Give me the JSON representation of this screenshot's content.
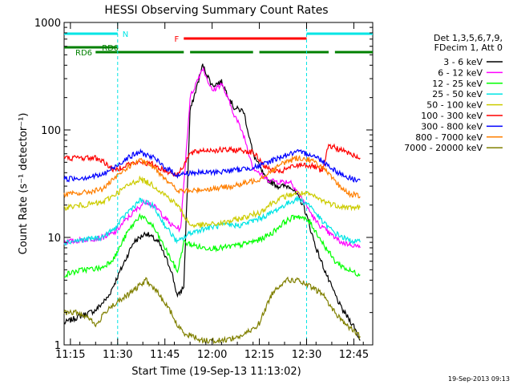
{
  "chart_data": {
    "type": "line",
    "title": "HESSI Observing Summary Count Rates",
    "xlabel": "Start Time (19-Sep-13 11:13:02)",
    "ylabel": "Count Rate (s⁻¹ detector⁻¹)",
    "y_scale": "log",
    "ylim": [
      1,
      1000
    ],
    "xlim_minutes": [
      0,
      98
    ],
    "x_tick_labels": [
      "11:15",
      "11:30",
      "11:45",
      "12:00",
      "12:15",
      "12:30",
      "12:45"
    ],
    "x_ticks_minutes": [
      2,
      17,
      32,
      47,
      62,
      77,
      92
    ],
    "y_tick_labels": [
      "1",
      "10",
      "100",
      "1000"
    ],
    "y_ticks": [
      1,
      10,
      100,
      1000
    ],
    "legend_header": [
      "Det 1,3,5,6,7,9,",
      "FDecim 1, Att 0"
    ],
    "legend_position": "right",
    "timestamp": "19-Sep-2013 09:13",
    "flags": [
      {
        "name": "N",
        "color": "#00e5e5",
        "segments": [
          [
            0,
            17
          ],
          [
            77,
            98
          ]
        ]
      },
      {
        "name": "F",
        "color": "#ff0000",
        "segments": [
          [
            38,
            77
          ]
        ]
      },
      {
        "name": "RD0",
        "color": "#008000",
        "segments": [
          [
            0,
            17
          ]
        ]
      },
      {
        "name": "RD6",
        "color": "#008000",
        "segments": [
          [
            10,
            38
          ],
          [
            40,
            60
          ],
          [
            62,
            84
          ],
          [
            86,
            98
          ]
        ]
      }
    ],
    "night_boundaries_minutes": [
      17,
      77
    ],
    "series": [
      {
        "name": "3 - 6 keV",
        "color": "#000000",
        "points": [
          [
            0,
            1.6
          ],
          [
            4,
            1.8
          ],
          [
            10,
            2.1
          ],
          [
            14,
            2.8
          ],
          [
            18,
            5
          ],
          [
            22,
            9
          ],
          [
            26,
            11
          ],
          [
            30,
            9
          ],
          [
            34,
            5
          ],
          [
            36,
            2.8
          ],
          [
            38,
            3.5
          ],
          [
            40,
            150
          ],
          [
            44,
            400
          ],
          [
            47,
            260
          ],
          [
            50,
            280
          ],
          [
            54,
            160
          ],
          [
            57,
            150
          ],
          [
            60,
            60
          ],
          [
            64,
            35
          ],
          [
            68,
            30
          ],
          [
            72,
            30
          ],
          [
            76,
            20
          ],
          [
            80,
            8
          ],
          [
            84,
            4
          ],
          [
            88,
            2.2
          ],
          [
            92,
            1.5
          ],
          [
            94,
            1.1
          ]
        ]
      },
      {
        "name": "6 - 12 keV",
        "color": "#ff00ff",
        "points": [
          [
            0,
            9
          ],
          [
            6,
            9.5
          ],
          [
            12,
            10
          ],
          [
            16,
            11
          ],
          [
            20,
            15
          ],
          [
            26,
            22
          ],
          [
            30,
            18
          ],
          [
            34,
            13
          ],
          [
            37,
            12
          ],
          [
            40,
            200
          ],
          [
            44,
            380
          ],
          [
            47,
            230
          ],
          [
            50,
            270
          ],
          [
            54,
            140
          ],
          [
            57,
            90
          ],
          [
            60,
            45
          ],
          [
            64,
            35
          ],
          [
            68,
            33
          ],
          [
            72,
            33
          ],
          [
            76,
            22
          ],
          [
            80,
            14
          ],
          [
            84,
            11
          ],
          [
            88,
            9
          ],
          [
            92,
            8.5
          ],
          [
            94,
            8
          ]
        ]
      },
      {
        "name": "12 - 25 keV",
        "color": "#00ff00",
        "points": [
          [
            0,
            4.5
          ],
          [
            6,
            5
          ],
          [
            12,
            5.2
          ],
          [
            16,
            6.5
          ],
          [
            20,
            11
          ],
          [
            24,
            16
          ],
          [
            28,
            13
          ],
          [
            32,
            8
          ],
          [
            36,
            4.8
          ],
          [
            38,
            9
          ],
          [
            44,
            8
          ],
          [
            50,
            8
          ],
          [
            56,
            8.5
          ],
          [
            62,
            9.5
          ],
          [
            66,
            11
          ],
          [
            70,
            14
          ],
          [
            74,
            16
          ],
          [
            78,
            14
          ],
          [
            82,
            9
          ],
          [
            86,
            6
          ],
          [
            90,
            5
          ],
          [
            94,
            4.5
          ]
        ]
      },
      {
        "name": "25 - 50 keV",
        "color": "#00e5e5",
        "points": [
          [
            0,
            9
          ],
          [
            6,
            9.5
          ],
          [
            12,
            10
          ],
          [
            16,
            12
          ],
          [
            20,
            17
          ],
          [
            24,
            22
          ],
          [
            28,
            20
          ],
          [
            32,
            13
          ],
          [
            36,
            9
          ],
          [
            40,
            11
          ],
          [
            44,
            12
          ],
          [
            50,
            13
          ],
          [
            56,
            13
          ],
          [
            62,
            15
          ],
          [
            66,
            17
          ],
          [
            70,
            20
          ],
          [
            74,
            23
          ],
          [
            78,
            20
          ],
          [
            82,
            14
          ],
          [
            86,
            11
          ],
          [
            90,
            9.5
          ],
          [
            94,
            9
          ]
        ]
      },
      {
        "name": "50 - 100 keV",
        "color": "#cccc00",
        "points": [
          [
            0,
            19
          ],
          [
            6,
            20
          ],
          [
            12,
            21
          ],
          [
            16,
            25
          ],
          [
            20,
            30
          ],
          [
            24,
            35
          ],
          [
            28,
            31
          ],
          [
            32,
            25
          ],
          [
            36,
            20
          ],
          [
            40,
            13
          ],
          [
            44,
            13
          ],
          [
            50,
            13.5
          ],
          [
            56,
            15
          ],
          [
            62,
            17
          ],
          [
            66,
            21
          ],
          [
            70,
            24
          ],
          [
            74,
            26
          ],
          [
            78,
            25
          ],
          [
            82,
            22
          ],
          [
            86,
            20
          ],
          [
            90,
            19
          ],
          [
            94,
            19
          ]
        ]
      },
      {
        "name": "100 - 300 keV",
        "color": "#ff0000",
        "points": [
          [
            0,
            55
          ],
          [
            10,
            55
          ],
          [
            12,
            52
          ],
          [
            16,
            42
          ],
          [
            20,
            48
          ],
          [
            24,
            50
          ],
          [
            28,
            48
          ],
          [
            32,
            42
          ],
          [
            36,
            38
          ],
          [
            40,
            60
          ],
          [
            44,
            65
          ],
          [
            50,
            65
          ],
          [
            56,
            65
          ],
          [
            60,
            62
          ],
          [
            64,
            45
          ],
          [
            68,
            40
          ],
          [
            72,
            45
          ],
          [
            76,
            48
          ],
          [
            80,
            45
          ],
          [
            82,
            40
          ],
          [
            84,
            72
          ],
          [
            88,
            65
          ],
          [
            92,
            58
          ],
          [
            94,
            55
          ]
        ]
      },
      {
        "name": "300 - 800 keV",
        "color": "#0000ff",
        "points": [
          [
            0,
            35
          ],
          [
            6,
            36
          ],
          [
            12,
            38
          ],
          [
            16,
            45
          ],
          [
            20,
            55
          ],
          [
            24,
            62
          ],
          [
            28,
            56
          ],
          [
            32,
            45
          ],
          [
            36,
            38
          ],
          [
            40,
            40
          ],
          [
            44,
            40
          ],
          [
            50,
            41
          ],
          [
            56,
            43
          ],
          [
            62,
            46
          ],
          [
            66,
            52
          ],
          [
            70,
            58
          ],
          [
            74,
            62
          ],
          [
            78,
            60
          ],
          [
            82,
            52
          ],
          [
            86,
            42
          ],
          [
            90,
            36
          ],
          [
            94,
            34
          ]
        ]
      },
      {
        "name": "800 - 7000 keV",
        "color": "#ff7f00",
        "points": [
          [
            0,
            25
          ],
          [
            6,
            26
          ],
          [
            12,
            28
          ],
          [
            16,
            35
          ],
          [
            20,
            45
          ],
          [
            24,
            52
          ],
          [
            28,
            46
          ],
          [
            32,
            36
          ],
          [
            36,
            27
          ],
          [
            40,
            27
          ],
          [
            44,
            28
          ],
          [
            50,
            29
          ],
          [
            56,
            31
          ],
          [
            62,
            35
          ],
          [
            66,
            42
          ],
          [
            70,
            50
          ],
          [
            74,
            55
          ],
          [
            78,
            53
          ],
          [
            82,
            45
          ],
          [
            86,
            33
          ],
          [
            90,
            26
          ],
          [
            94,
            24
          ]
        ]
      },
      {
        "name": "7000 - 20000 keV",
        "color": "#808000",
        "points": [
          [
            0,
            2
          ],
          [
            4,
            2
          ],
          [
            8,
            1.8
          ],
          [
            10,
            1.5
          ],
          [
            14,
            2.2
          ],
          [
            18,
            2.6
          ],
          [
            22,
            3.2
          ],
          [
            26,
            4
          ],
          [
            30,
            3
          ],
          [
            34,
            2
          ],
          [
            36,
            1.5
          ],
          [
            38,
            1.3
          ],
          [
            44,
            1.1
          ],
          [
            50,
            1.1
          ],
          [
            56,
            1.2
          ],
          [
            60,
            1.4
          ],
          [
            62,
            1.6
          ],
          [
            66,
            3
          ],
          [
            70,
            4
          ],
          [
            74,
            4
          ],
          [
            78,
            3.5
          ],
          [
            82,
            3
          ],
          [
            86,
            2
          ],
          [
            90,
            1.5
          ],
          [
            94,
            1.2
          ]
        ]
      }
    ]
  }
}
